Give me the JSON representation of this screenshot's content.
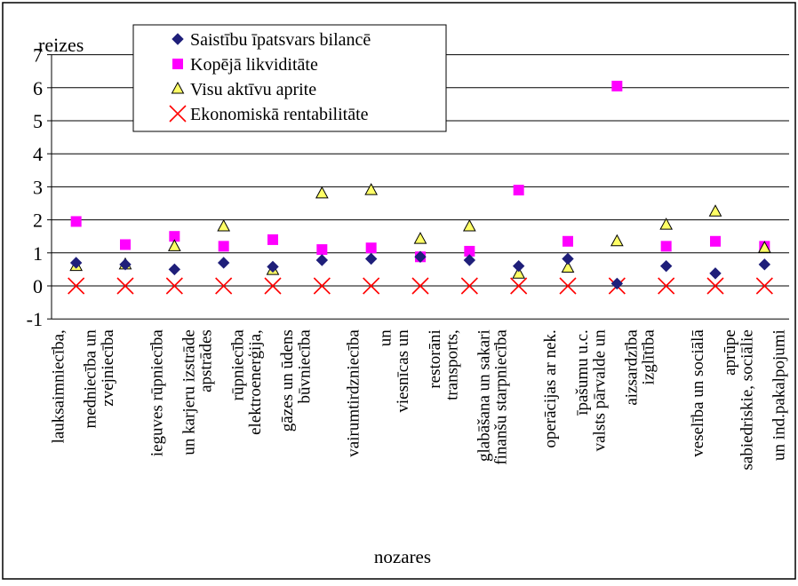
{
  "chart_data": {
    "type": "scatter",
    "ylabel": "reizes",
    "xlabel": "nozares",
    "ylim": [
      -1,
      7
    ],
    "yticks": [
      "-1",
      "0",
      "1",
      "2",
      "3",
      "4",
      "5",
      "6",
      "7"
    ],
    "grid": "horizontal",
    "legend_position": "top-left",
    "categories": [
      [
        "lauksaimniecība,",
        "medniecība un"
      ],
      [
        "zvejniecība"
      ],
      [
        "ieguves rūpniecība",
        "un karjeru izstrāde"
      ],
      [
        "apstrādes",
        "rūpniecība"
      ],
      [
        "elektroenerģija,",
        "gāzes un ūdens"
      ],
      [
        "būvniecība"
      ],
      [
        "vairumtirdzniecība",
        "un"
      ],
      [
        "viesnīcas un",
        "restorāni"
      ],
      [
        "transports,",
        "glabāšana un sakari"
      ],
      [
        "finanšu starpniecība"
      ],
      [
        "operācijas ar nek.",
        "īpašumu u.c."
      ],
      [
        "valsts pārvalde un",
        "aizsardzība"
      ],
      [
        "izglītība"
      ],
      [
        "veselība un sociālā",
        "aprūpe"
      ],
      [
        "sabiedriskie, sociālie",
        "un ind.pakalpojumi"
      ]
    ],
    "series": [
      {
        "name": "Saistību īpatsvars bilancē",
        "marker": "diamond",
        "color": "#1f1f7a",
        "values": [
          0.7,
          0.65,
          0.5,
          0.7,
          0.58,
          0.78,
          0.82,
          0.88,
          0.78,
          0.6,
          0.82,
          0.07,
          0.6,
          0.38,
          0.65
        ]
      },
      {
        "name": "Kopējā likviditāte",
        "marker": "square",
        "color": "#ff00ff",
        "values": [
          1.95,
          1.25,
          1.5,
          1.2,
          1.4,
          1.1,
          1.15,
          0.88,
          1.05,
          2.9,
          1.35,
          6.05,
          1.2,
          1.35,
          1.2
        ]
      },
      {
        "name": "Visu aktīvu aprite",
        "marker": "triangle",
        "color": "#ffff66",
        "values": [
          0.6,
          0.65,
          1.2,
          1.8,
          0.48,
          2.8,
          2.9,
          1.42,
          1.8,
          0.37,
          0.55,
          1.35,
          1.85,
          2.25,
          1.15
        ]
      },
      {
        "name": "Ekonomiskā rentabilitāte",
        "marker": "x",
        "color": "#ff0000",
        "values": [
          0,
          0,
          0,
          0,
          0,
          0,
          0,
          0,
          0,
          0,
          0,
          0,
          0,
          0,
          0
        ]
      }
    ]
  }
}
